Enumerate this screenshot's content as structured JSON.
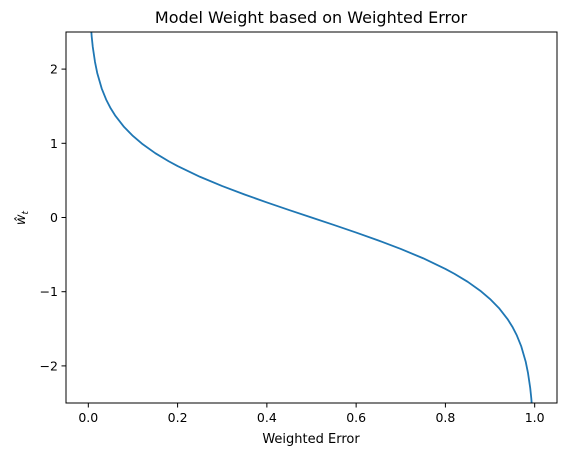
{
  "chart_data": {
    "type": "line",
    "title": "Model Weight based on Weighted Error",
    "xlabel": "Weighted Error",
    "ylabel": "ŵ",
    "ylabel_sub": "t",
    "xlim": [
      -0.05,
      1.05
    ],
    "ylim": [
      -2.5,
      2.5
    ],
    "x_ticks": [
      0.0,
      0.2,
      0.4,
      0.6,
      0.8,
      1.0
    ],
    "x_tick_labels": [
      "0.0",
      "0.2",
      "0.4",
      "0.6",
      "0.8",
      "1.0"
    ],
    "y_ticks": [
      -2,
      -1,
      0,
      1,
      2
    ],
    "y_tick_labels": [
      "−2",
      "−1",
      "0",
      "1",
      "2"
    ],
    "grid": false,
    "series": [
      {
        "color": "#1f77b4",
        "x": [
          0.0033,
          0.005,
          0.0075,
          0.01,
          0.015,
          0.02,
          0.03,
          0.04,
          0.05,
          0.06,
          0.08,
          0.1,
          0.12,
          0.15,
          0.18,
          0.2,
          0.25,
          0.3,
          0.35,
          0.4,
          0.45,
          0.5,
          0.55,
          0.6,
          0.65,
          0.7,
          0.75,
          0.8,
          0.82,
          0.85,
          0.88,
          0.9,
          0.92,
          0.94,
          0.95,
          0.96,
          0.97,
          0.98,
          0.985,
          0.99,
          0.9925,
          0.995,
          0.9967
        ],
        "y": [
          2.852,
          2.647,
          2.442,
          2.298,
          2.095,
          1.946,
          1.738,
          1.589,
          1.472,
          1.376,
          1.221,
          1.099,
          0.996,
          0.867,
          0.758,
          0.693,
          0.549,
          0.424,
          0.31,
          0.203,
          0.1,
          0.0,
          -0.1,
          -0.203,
          -0.31,
          -0.424,
          -0.549,
          -0.693,
          -0.758,
          -0.867,
          -0.996,
          -1.099,
          -1.221,
          -1.376,
          -1.472,
          -1.589,
          -1.738,
          -1.946,
          -2.095,
          -2.298,
          -2.442,
          -2.647,
          -2.852
        ]
      }
    ]
  }
}
